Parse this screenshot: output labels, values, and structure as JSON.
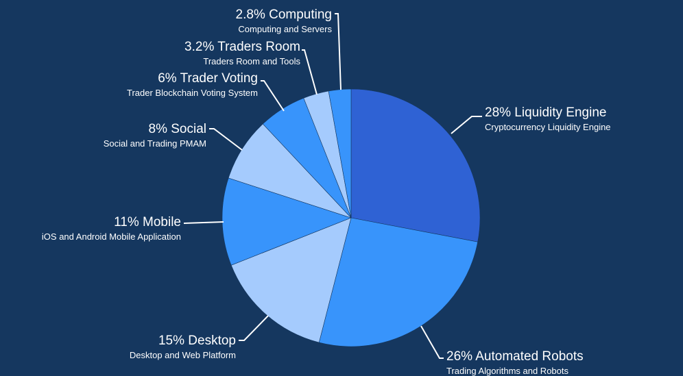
{
  "chart_data": {
    "type": "pie",
    "colors": {
      "background": "#15375f",
      "dark_blue": "#2f62d4",
      "bright_blue": "#3894fb",
      "light_blue": "#a5cbfd"
    },
    "slices": [
      {
        "label": "28% Liquidity Engine",
        "description": "Cryptocurrency Liquidity Engine",
        "value": 28,
        "color": "#2f62d4"
      },
      {
        "label": "26% Automated Robots",
        "description": "Trading Algorithms and Robots",
        "value": 26,
        "color": "#3894fb"
      },
      {
        "label": "15% Desktop",
        "description": "Desktop and Web Platform",
        "value": 15,
        "color": "#a5cbfd"
      },
      {
        "label": "11% Mobile",
        "description": "iOS and Android Mobile Application",
        "value": 11,
        "color": "#3894fb"
      },
      {
        "label": "8% Social",
        "description": "Social and Trading PMAM",
        "value": 8,
        "color": "#a5cbfd"
      },
      {
        "label": "6% Trader Voting",
        "description": "Trader Blockchain Voting System",
        "value": 6,
        "color": "#3894fb"
      },
      {
        "label": "3.2% Traders Room",
        "description": "Traders Room and Tools",
        "value": 3.2,
        "color": "#a5cbfd"
      },
      {
        "label": "2.8% Computing",
        "description": "Computing and Servers",
        "value": 2.8,
        "color": "#3894fb"
      }
    ]
  }
}
